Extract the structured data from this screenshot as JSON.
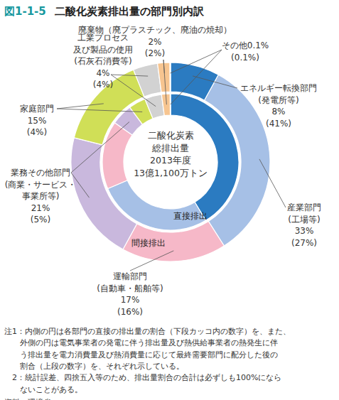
{
  "chart_data": {
    "type": "pie",
    "figure_number": "図1-1-5",
    "title": "二酸化炭素排出量の部門別内訳",
    "categories": [
      "エネルギー転換部門\n(発電所等)",
      "産業部門\n(工場等)",
      "運輸部門\n(自動車・船舶等)",
      "業務その他部門\n(商業・サービス・\n事業所等)",
      "家庭部門",
      "工業プロセス\n及び製品の使用\n(石灰石消費等)",
      "廃棄物（廃プラスチック、廃油の焼却）",
      "その他"
    ],
    "colors": [
      "#2b7bc1",
      "#a6c0e6",
      "#f6b8c8",
      "#c9b8dd",
      "#d0df57",
      "#d2d2d2",
      "#f7c590",
      "#eed9c0"
    ],
    "series": [
      {
        "name": "直接排出",
        "values": [
          41,
          27,
          16,
          5,
          4,
          4,
          2,
          0.1
        ],
        "value_labels": [
          "(41%)",
          "(27%)",
          "(16%)",
          "(5%)",
          "(4%)",
          "(4%)",
          "(2%)",
          "(0.1%)"
        ]
      },
      {
        "name": "間接排出",
        "values": [
          8,
          33,
          17,
          21,
          15,
          4,
          2,
          0.1
        ],
        "value_labels": [
          "8%",
          "33%",
          "17%",
          "21%",
          "15%",
          "4%",
          "2%",
          "0.1%"
        ]
      }
    ],
    "data_labels": true,
    "center_text": [
      "二酸化炭素",
      "総排出量",
      "2013年度",
      "13億1,100万トン"
    ],
    "notes": [
      [
        "注1：内側の円は各部門の直接の排出量の割合（下段カッコ内の数字）を、また、",
        "外側の円は電気事業者の発電に伴う排出量及び熱供給事業者の熱発生に伴",
        "う排出量を電力消費量及び熱消費量に応じて最終需要部門に配分した後の",
        "割合（上段の数字）を、それぞれ示している。"
      ],
      [
        "2：統計誤差、四捨五入等のため、排出量割合の合計は必ずしも100%になら",
        "ないことがある。"
      ]
    ],
    "source": "資料：環境省"
  }
}
